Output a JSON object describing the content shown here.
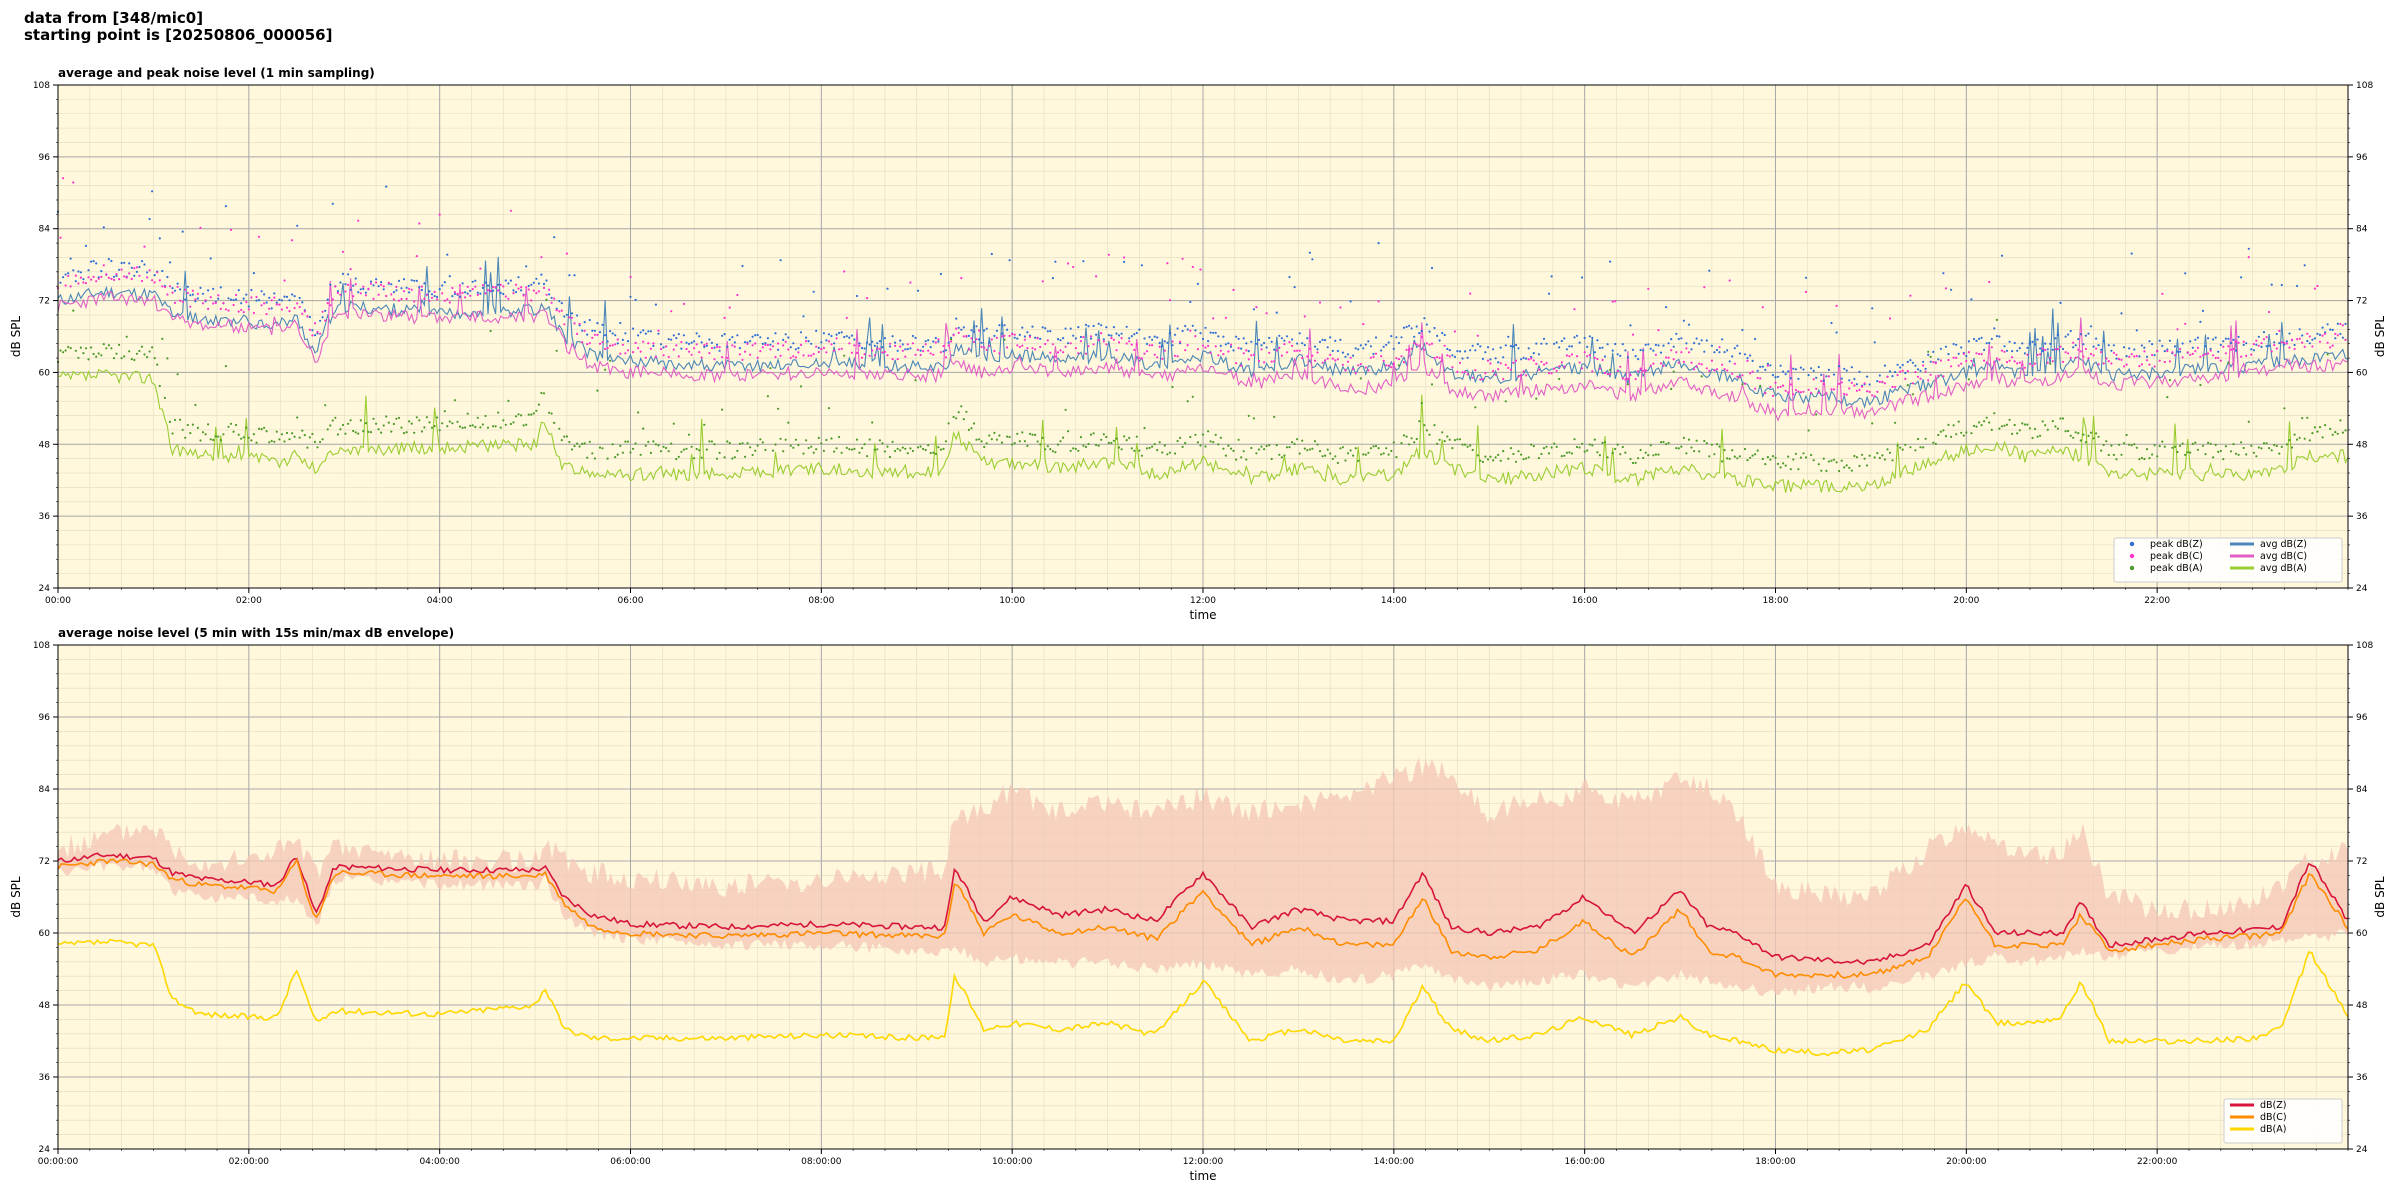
{
  "header": {
    "line1": "data from [348/mic0]",
    "line2": "starting point is [20250806_000056]"
  },
  "chart_data": [
    {
      "type": "line",
      "title": "average and peak noise level (1 min sampling)",
      "xlabel": "time",
      "ylabel": "dB SPL",
      "ylim": [
        24,
        108
      ],
      "xlim_hours": [
        0,
        24
      ],
      "yticks": [
        24,
        36,
        48,
        60,
        72,
        84,
        96,
        108
      ],
      "xticks": [
        {
          "h": 0,
          "label": "00:00"
        },
        {
          "h": 2,
          "label": "02:00"
        },
        {
          "h": 4,
          "label": "04:00"
        },
        {
          "h": 6,
          "label": "06:00"
        },
        {
          "h": 8,
          "label": "08:00"
        },
        {
          "h": 10,
          "label": "10:00"
        },
        {
          "h": 12,
          "label": "12:00"
        },
        {
          "h": 14,
          "label": "14:00"
        },
        {
          "h": 16,
          "label": "16:00"
        },
        {
          "h": 18,
          "label": "18:00"
        },
        {
          "h": 20,
          "label": "20:00"
        },
        {
          "h": 22,
          "label": "22:00"
        }
      ],
      "grid": true,
      "legend_position": "bottom-right",
      "x_hours": [
        0,
        0.5,
        1,
        1.2,
        1.5,
        2,
        2.3,
        2.5,
        2.7,
        2.9,
        3,
        4,
        5,
        5.1,
        5.3,
        5.6,
        6,
        7,
        8,
        9,
        9.3,
        9.4,
        9.7,
        10,
        10.5,
        11,
        11.5,
        12,
        12.5,
        13,
        13.5,
        14,
        14.3,
        14.6,
        15,
        15.5,
        16,
        16.5,
        17,
        17.3,
        17.6,
        18,
        18.5,
        19,
        19.3,
        19.6,
        20,
        20.3,
        20.6,
        21,
        21.2,
        21.5,
        22,
        22.5,
        23,
        23.3,
        23.6,
        24
      ],
      "series": [
        {
          "name": "avg dB(Z)",
          "kind": "line",
          "color": "#4a86b8",
          "values": [
            72,
            73.5,
            73,
            70,
            69,
            68.5,
            68,
            69,
            63,
            71,
            71,
            70,
            70.5,
            71.5,
            66,
            63,
            62,
            61,
            61.5,
            61,
            61,
            64,
            62,
            63,
            62,
            63,
            61,
            63,
            60,
            62,
            60,
            61,
            64,
            60,
            59,
            60,
            61,
            59,
            62,
            60,
            59,
            56,
            56,
            55,
            57,
            58,
            60,
            61,
            60,
            61,
            62,
            59.5,
            60,
            60.5,
            61,
            62,
            62,
            63
          ]
        },
        {
          "name": "avg dB(C)",
          "kind": "line",
          "color": "#e35fc7",
          "values": [
            71,
            72.5,
            72,
            69,
            68,
            67.5,
            67,
            68,
            62,
            70,
            70,
            69,
            69.5,
            70.5,
            65,
            61,
            60,
            59.5,
            60,
            59.5,
            59.5,
            62,
            60,
            61,
            60,
            61,
            59,
            61,
            58,
            60,
            57,
            58,
            61,
            57,
            56,
            57,
            58,
            56,
            59,
            57,
            56,
            53,
            54,
            53,
            55,
            56,
            58,
            59,
            58,
            59,
            60,
            58,
            58.5,
            59,
            60,
            61,
            61,
            61.5
          ]
        },
        {
          "name": "avg dB(A)",
          "kind": "line",
          "color": "#9acd32",
          "values": [
            59,
            59.5,
            59,
            47,
            46,
            46,
            45,
            46,
            44,
            47,
            47,
            47.5,
            48,
            52,
            44,
            43,
            43,
            43,
            44,
            43,
            44,
            50,
            45,
            45,
            44,
            45,
            43,
            45,
            42,
            44,
            42,
            43,
            47,
            44,
            42,
            43,
            44,
            42,
            44,
            43,
            42,
            41,
            41,
            41,
            43,
            45,
            47,
            48,
            46,
            47,
            46,
            43,
            43,
            43,
            43,
            44,
            46,
            46
          ]
        },
        {
          "name": "peak dB(Z)",
          "kind": "points",
          "color": "#2f6fd6",
          "offset_db": 2.5,
          "ref": "avg dB(Z)"
        },
        {
          "name": "peak dB(C)",
          "kind": "points",
          "color": "#ff33cc",
          "offset_db": 2.5,
          "ref": "avg dB(C)"
        },
        {
          "name": "peak dB(A)",
          "kind": "points",
          "color": "#4c9a2a",
          "offset_db": 2.5,
          "ref": "avg dB(A)"
        }
      ],
      "legend": [
        [
          "peak dB(Z)",
          "avg dB(Z)"
        ],
        [
          "peak dB(C)",
          "avg dB(C)"
        ],
        [
          "peak dB(A)",
          "avg dB(A)"
        ]
      ]
    },
    {
      "type": "line",
      "title": "average noise level (5 min with 15s min/max dB envelope)",
      "xlabel": "time",
      "ylabel": "dB SPL",
      "ylim": [
        24,
        108
      ],
      "xlim_hours": [
        0,
        24
      ],
      "yticks": [
        24,
        36,
        48,
        60,
        72,
        84,
        96,
        108
      ],
      "xticks": [
        {
          "h": 0,
          "label": "00:00:00"
        },
        {
          "h": 2,
          "label": "02:00:00"
        },
        {
          "h": 4,
          "label": "04:00:00"
        },
        {
          "h": 6,
          "label": "06:00:00"
        },
        {
          "h": 8,
          "label": "08:00:00"
        },
        {
          "h": 10,
          "label": "10:00:00"
        },
        {
          "h": 12,
          "label": "12:00:00"
        },
        {
          "h": 14,
          "label": "14:00:00"
        },
        {
          "h": 16,
          "label": "16:00:00"
        },
        {
          "h": 18,
          "label": "18:00:00"
        },
        {
          "h": 20,
          "label": "20:00:00"
        },
        {
          "h": 22,
          "label": "22:00:00"
        }
      ],
      "grid": true,
      "legend_position": "bottom-right",
      "x_hours": [
        0,
        0.5,
        1,
        1.2,
        1.5,
        2,
        2.3,
        2.5,
        2.7,
        2.9,
        3,
        4,
        5,
        5.1,
        5.3,
        5.6,
        6,
        7,
        8,
        9,
        9.3,
        9.4,
        9.7,
        10,
        10.5,
        11,
        11.5,
        12,
        12.5,
        13,
        13.5,
        14,
        14.3,
        14.6,
        15,
        15.5,
        16,
        16.5,
        17,
        17.3,
        17.6,
        18,
        18.5,
        19,
        19.3,
        19.6,
        20,
        20.3,
        20.6,
        21,
        21.2,
        21.5,
        22,
        22.5,
        23,
        23.3,
        23.6,
        24
      ],
      "envelope": {
        "color": "#f4c7b5",
        "upper": [
          74,
          76,
          78,
          74,
          72,
          72,
          74,
          75,
          70,
          74,
          74,
          72,
          72,
          75,
          72,
          70,
          69,
          68,
          69,
          70,
          70,
          80,
          80,
          84,
          80,
          82,
          80,
          83,
          80,
          82,
          82,
          86,
          88,
          86,
          80,
          82,
          84,
          82,
          86,
          84,
          80,
          68,
          66,
          66,
          70,
          74,
          78,
          76,
          72,
          74,
          78,
          66,
          64,
          64,
          65,
          68,
          72,
          74
        ],
        "lower": [
          70,
          71,
          71,
          67,
          66,
          66,
          65,
          66,
          61,
          69,
          69,
          68,
          68,
          69,
          63,
          60,
          59,
          58,
          58,
          57,
          57,
          58,
          55,
          56,
          55,
          55,
          54,
          55,
          53,
          54,
          52,
          53,
          55,
          52,
          51,
          52,
          53,
          51,
          53,
          52,
          51,
          50,
          51,
          51,
          52,
          53,
          55,
          56,
          55,
          56,
          57,
          56,
          57,
          58,
          58,
          59,
          59,
          60
        ]
      },
      "series": [
        {
          "name": "dB(Z)",
          "kind": "line",
          "color": "#d7143c",
          "values": [
            72,
            73,
            72.5,
            70,
            69,
            68.5,
            68,
            73,
            63,
            71,
            71,
            70.5,
            70.5,
            71,
            66,
            63,
            61.5,
            61,
            61.5,
            61,
            61,
            71,
            62,
            66,
            63,
            64,
            62,
            70,
            61,
            64,
            62,
            62,
            70,
            61,
            60,
            61,
            66,
            60,
            67,
            61,
            60,
            56,
            55.5,
            55,
            56.5,
            58,
            68,
            60,
            60,
            60,
            65,
            58,
            59,
            60,
            60.5,
            61,
            72,
            62
          ]
        },
        {
          "name": "dB(C)",
          "kind": "line",
          "color": "#ff8c00",
          "values": [
            71,
            72,
            71.5,
            69,
            68,
            67.5,
            67,
            72,
            62,
            70,
            70,
            69.5,
            69.5,
            70,
            65,
            61,
            60,
            59.5,
            60,
            59.5,
            59.5,
            69,
            60,
            63,
            60,
            61,
            59,
            67,
            58,
            61,
            58,
            58,
            66,
            57,
            56,
            57,
            62,
            56,
            64,
            57,
            56,
            53,
            53,
            53,
            54.5,
            56,
            66,
            58,
            58,
            58,
            63,
            57,
            58,
            59,
            59.5,
            60,
            70,
            61
          ]
        },
        {
          "name": "dB(A)",
          "kind": "line",
          "color": "#ffd700",
          "values": [
            58,
            58.5,
            58,
            49,
            46.5,
            46,
            46,
            54,
            45,
            47,
            47,
            46.5,
            48,
            51,
            44,
            42.5,
            42.5,
            42.5,
            43,
            42.5,
            43,
            53,
            44,
            45,
            44,
            45,
            43,
            52,
            42,
            44,
            42,
            42,
            51,
            44,
            42,
            43,
            46,
            43,
            46,
            43,
            42,
            40.5,
            40,
            40.5,
            42,
            44,
            52,
            45,
            45,
            46,
            52,
            42,
            42,
            42,
            42.5,
            44,
            57,
            46
          ]
        }
      ],
      "legend": [
        [
          "dB(Z)"
        ],
        [
          "dB(C)"
        ],
        [
          "dB(A)"
        ]
      ]
    }
  ]
}
